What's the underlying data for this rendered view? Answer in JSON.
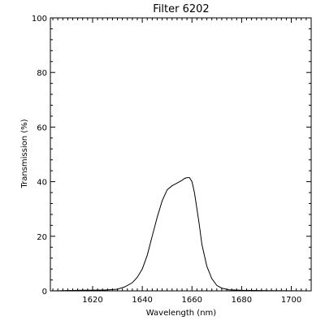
{
  "chart_data": {
    "type": "line",
    "title": "Filter 6202",
    "xlabel": "Wavelength (nm)",
    "ylabel": "Transmission (%)",
    "xlim": [
      1603,
      1708
    ],
    "ylim": [
      0,
      100
    ],
    "grid": false,
    "x_ticks": [
      1620,
      1640,
      1660,
      1680,
      1700
    ],
    "y_ticks": [
      0,
      20,
      40,
      60,
      80,
      100
    ],
    "series": [
      {
        "x": [
          1604,
          1615,
          1625,
          1630,
          1633,
          1636,
          1638,
          1640,
          1642,
          1644,
          1646,
          1648,
          1650,
          1652,
          1654,
          1656,
          1657,
          1658,
          1659,
          1660,
          1661,
          1662,
          1663,
          1664,
          1666,
          1668,
          1670,
          1672,
          1675,
          1680,
          1690,
          1708
        ],
        "y": [
          0,
          0.2,
          0.3,
          0.6,
          1.5,
          3,
          5,
          8,
          13,
          20,
          27,
          33,
          37,
          38.5,
          39.5,
          40.5,
          41.2,
          41.5,
          41.5,
          40,
          36,
          30,
          24,
          17,
          9,
          4.5,
          2,
          1,
          0.4,
          0.2,
          0.1,
          0
        ]
      }
    ]
  }
}
